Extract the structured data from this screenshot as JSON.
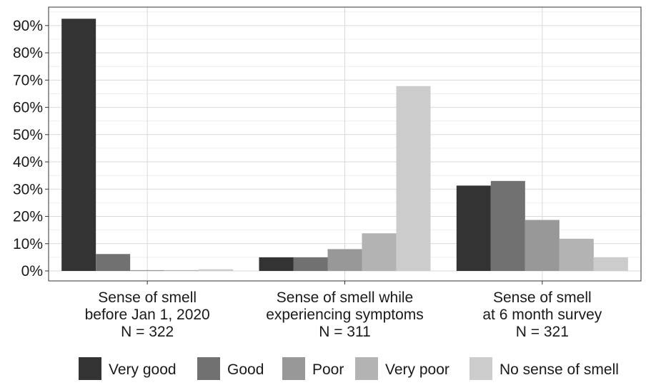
{
  "chart_data": {
    "type": "bar",
    "categories": [
      [
        "Sense of smell",
        "before Jan 1, 2020",
        "N = 322"
      ],
      [
        "Sense of smell while",
        "experiencing symptoms",
        "N = 311"
      ],
      [
        "Sense of smell",
        "at 6 month survey",
        "N = 321"
      ]
    ],
    "series": [
      {
        "name": "Very good",
        "color": "#333333",
        "values": [
          92.5,
          5.0,
          31.3
        ]
      },
      {
        "name": "Good",
        "color": "#717171",
        "values": [
          6.2,
          5.0,
          33.0
        ]
      },
      {
        "name": "Poor",
        "color": "#989898",
        "values": [
          0.3,
          8.0,
          18.7
        ]
      },
      {
        "name": "Very poor",
        "color": "#b3b3b3",
        "values": [
          0.3,
          13.8,
          11.8
        ]
      },
      {
        "name": "No sense of smell",
        "color": "#cccccc",
        "values": [
          0.6,
          67.8,
          5.0
        ]
      }
    ],
    "yticks": [
      "0%",
      "10%",
      "20%",
      "30%",
      "40%",
      "50%",
      "60%",
      "70%",
      "80%",
      "90%"
    ],
    "ylim": [
      0,
      96
    ],
    "grid": true,
    "legend_position": "bottom"
  }
}
